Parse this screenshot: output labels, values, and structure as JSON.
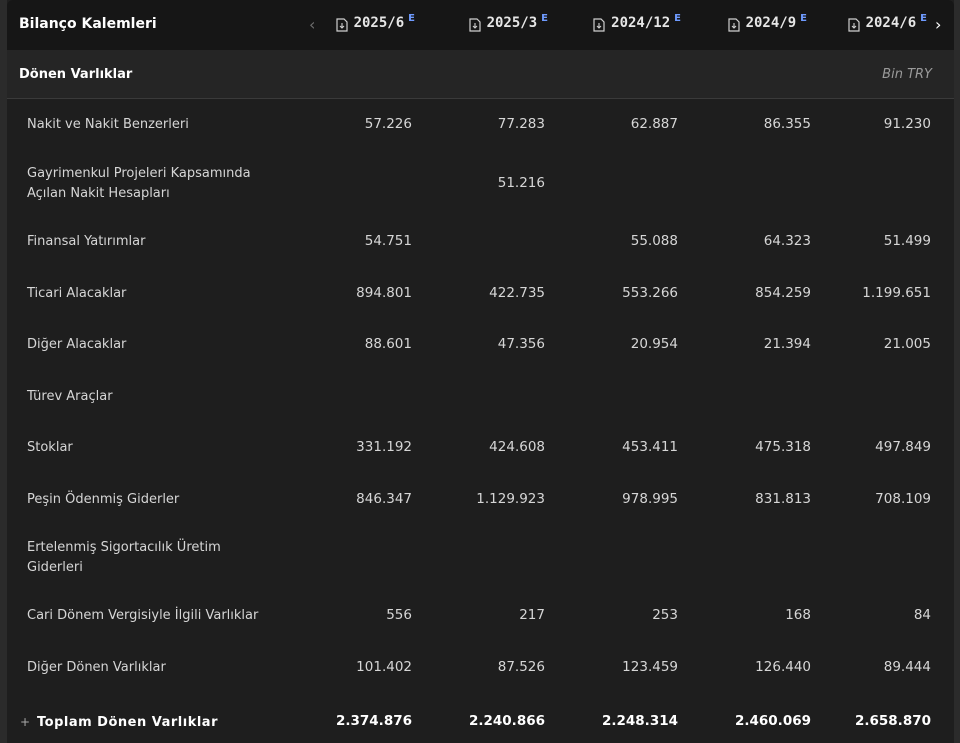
{
  "header": {
    "title": "Bilanço Kalemleri",
    "estimate_marker": "E",
    "columns": [
      "2025/6",
      "2025/3",
      "2024/12",
      "2024/9",
      "2024/6"
    ]
  },
  "section": {
    "label": "Dönen Varlıklar",
    "unit": "Bin TRY"
  },
  "rows": [
    {
      "name": "Nakit ve Nakit Benzerleri",
      "values": [
        "57.226",
        "77.283",
        "62.887",
        "86.355",
        "91.230"
      ]
    },
    {
      "name": "Gayrimenkul Projeleri Kapsamında Açılan Nakit Hesapları",
      "values": [
        "",
        "51.216",
        "",
        "",
        ""
      ]
    },
    {
      "name": "Finansal Yatırımlar",
      "values": [
        "54.751",
        "",
        "55.088",
        "64.323",
        "51.499"
      ]
    },
    {
      "name": "Ticari Alacaklar",
      "values": [
        "894.801",
        "422.735",
        "553.266",
        "854.259",
        "1.199.651"
      ]
    },
    {
      "name": "Diğer Alacaklar",
      "values": [
        "88.601",
        "47.356",
        "20.954",
        "21.394",
        "21.005"
      ]
    },
    {
      "name": "Türev Araçlar",
      "values": [
        "",
        "",
        "",
        "",
        ""
      ]
    },
    {
      "name": "Stoklar",
      "values": [
        "331.192",
        "424.608",
        "453.411",
        "475.318",
        "497.849"
      ]
    },
    {
      "name": "Peşin Ödenmiş Giderler",
      "values": [
        "846.347",
        "1.129.923",
        "978.995",
        "831.813",
        "708.109"
      ]
    },
    {
      "name": "Ertelenmiş Sigortacılık Üretim Giderleri",
      "values": [
        "",
        "",
        "",
        "",
        ""
      ]
    },
    {
      "name": "Cari Dönem Vergisiyle İlgili Varlıklar",
      "values": [
        "556",
        "217",
        "253",
        "168",
        "84"
      ]
    },
    {
      "name": "Diğer Dönen Varlıklar",
      "values": [
        "101.402",
        "87.526",
        "123.459",
        "126.440",
        "89.444"
      ]
    }
  ],
  "total": {
    "expand_symbol": "+",
    "name": "Toplam Dönen Varlıklar",
    "values": [
      "2.374.876",
      "2.240.866",
      "2.248.314",
      "2.460.069",
      "2.658.870"
    ]
  }
}
